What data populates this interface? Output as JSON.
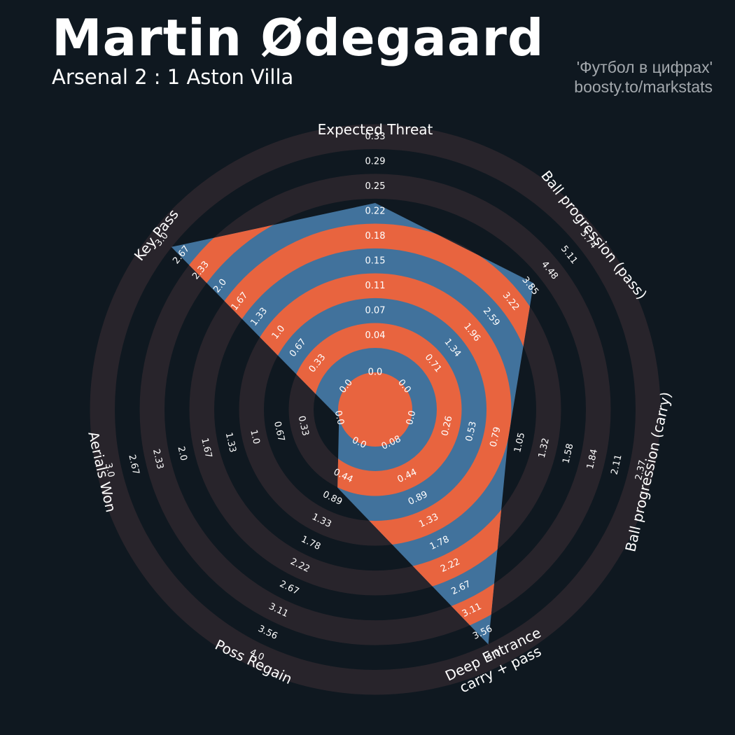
{
  "header": {
    "title": "Martin Ødegaard",
    "subtitle": "Arsenal 2 : 1 Aston Villa",
    "credit_line1": "'Футбол в цифрах'",
    "credit_line2": "boosty.to/markstats"
  },
  "colors": {
    "background": "#0f1820",
    "ring": "#28242b",
    "polygon_fill": "#41729c",
    "polygon_stripe": "#e8643f",
    "text": "#ffffff",
    "credit": "#a3a8ad"
  },
  "chart_data": {
    "type": "radar",
    "title": "Martin Ødegaard",
    "params": [
      {
        "label": "Expected Threat",
        "ticks": [
          "0.0",
          "0.04",
          "0.07",
          "0.11",
          "0.15",
          "0.18",
          "0.22",
          "0.25",
          "0.29",
          "0.33"
        ],
        "value": 0.25
      },
      {
        "label": "Ball progression (pass)",
        "ticks": [
          "0.0",
          "0.71",
          "1.34",
          "1.96",
          "2.59",
          "3.22",
          "3.85",
          "4.48",
          "5.11",
          "5.74"
        ],
        "value": 4.25
      },
      {
        "label": "Ball progression (carry)",
        "ticks": [
          "0.0",
          "0.26",
          "0.53",
          "0.79",
          "1.05",
          "1.32",
          "1.58",
          "1.84",
          "2.11",
          "2.37"
        ],
        "value": 1.05
      },
      {
        "label": "Deep Entrance\ncarry + pass",
        "ticks": [
          "0.08",
          "0.44",
          "0.89",
          "1.33",
          "1.78",
          "2.22",
          "2.67",
          "3.11",
          "3.56",
          "4.0"
        ],
        "value": 4.0
      },
      {
        "label": "Poss Regain",
        "ticks": [
          "0.0",
          "0.44",
          "0.89",
          "1.33",
          "1.78",
          "2.22",
          "2.67",
          "3.11",
          "3.56",
          "4.0"
        ],
        "value": 0.89
      },
      {
        "label": "Aerials Won",
        "ticks": [
          "0.0",
          "0.33",
          "0.67",
          "1.0",
          "1.33",
          "1.67",
          "2.0",
          "2.33",
          "2.67",
          "3.0"
        ],
        "value": 0.0
      },
      {
        "label": "Key Pass",
        "ticks": [
          "0.0",
          "0.33",
          "0.67",
          "1.0",
          "1.33",
          "1.67",
          "2.0",
          "2.33",
          "2.67",
          "3.0"
        ],
        "value": 3.0
      }
    ]
  }
}
